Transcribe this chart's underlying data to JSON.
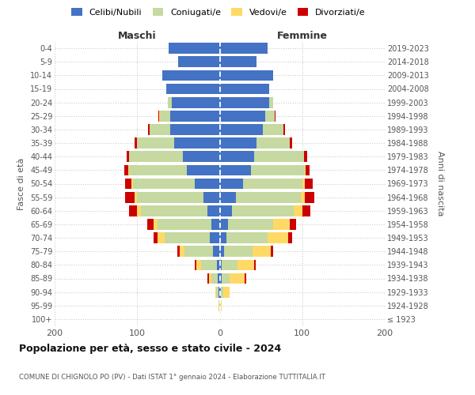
{
  "age_groups": [
    "100+",
    "95-99",
    "90-94",
    "85-89",
    "80-84",
    "75-79",
    "70-74",
    "65-69",
    "60-64",
    "55-59",
    "50-54",
    "45-49",
    "40-44",
    "35-39",
    "30-34",
    "25-29",
    "20-24",
    "15-19",
    "10-14",
    "5-9",
    "0-4"
  ],
  "birth_years": [
    "≤ 1923",
    "1924-1928",
    "1929-1933",
    "1934-1938",
    "1939-1943",
    "1944-1948",
    "1949-1953",
    "1954-1958",
    "1959-1963",
    "1964-1968",
    "1969-1973",
    "1974-1978",
    "1979-1983",
    "1984-1988",
    "1989-1993",
    "1994-1998",
    "1999-2003",
    "2004-2008",
    "2009-2013",
    "2014-2018",
    "2019-2023"
  ],
  "male_celibi": [
    0,
    0,
    1,
    2,
    3,
    8,
    12,
    10,
    15,
    20,
    30,
    40,
    45,
    55,
    60,
    60,
    58,
    65,
    70,
    50,
    62
  ],
  "male_coniugati": [
    0,
    1,
    3,
    8,
    20,
    35,
    55,
    65,
    80,
    80,
    75,
    70,
    65,
    45,
    25,
    12,
    5,
    0,
    0,
    0,
    0
  ],
  "male_vedovi": [
    0,
    0,
    1,
    3,
    5,
    5,
    8,
    5,
    5,
    3,
    2,
    1,
    0,
    0,
    0,
    1,
    0,
    0,
    0,
    0,
    0
  ],
  "male_divorziati": [
    0,
    0,
    0,
    2,
    2,
    3,
    5,
    8,
    10,
    12,
    8,
    5,
    3,
    3,
    2,
    1,
    0,
    0,
    0,
    0,
    0
  ],
  "female_nubili": [
    0,
    0,
    1,
    2,
    2,
    5,
    8,
    10,
    15,
    20,
    28,
    38,
    42,
    45,
    52,
    55,
    60,
    60,
    65,
    45,
    58
  ],
  "female_coniugate": [
    0,
    0,
    3,
    10,
    20,
    35,
    50,
    55,
    75,
    78,
    72,
    65,
    60,
    40,
    25,
    12,
    5,
    0,
    0,
    0,
    0
  ],
  "female_vedove": [
    0,
    2,
    8,
    18,
    20,
    22,
    25,
    20,
    10,
    5,
    3,
    1,
    0,
    0,
    0,
    0,
    0,
    0,
    0,
    0,
    0
  ],
  "female_divorziate": [
    0,
    0,
    0,
    2,
    2,
    3,
    5,
    8,
    10,
    12,
    10,
    5,
    4,
    3,
    2,
    1,
    0,
    0,
    0,
    0,
    0
  ],
  "color_celibi": "#4472C4",
  "color_coniugati": "#C5D9A0",
  "color_vedovi": "#FFD966",
  "color_divorziati": "#CC0000",
  "title": "Popolazione per età, sesso e stato civile - 2024",
  "subtitle": "COMUNE DI CHIGNOLO PO (PV) - Dati ISTAT 1° gennaio 2024 - Elaborazione TUTTITALIA.IT",
  "label_maschi": "Maschi",
  "label_femmine": "Femmine",
  "ylabel_left": "Fasce di età",
  "ylabel_right": "Anni di nascita",
  "xlim": 200,
  "legend_labels": [
    "Celibi/Nubili",
    "Coniugati/e",
    "Vedovi/e",
    "Divorziati/e"
  ],
  "background_color": "#ffffff",
  "grid_color": "#cccccc"
}
